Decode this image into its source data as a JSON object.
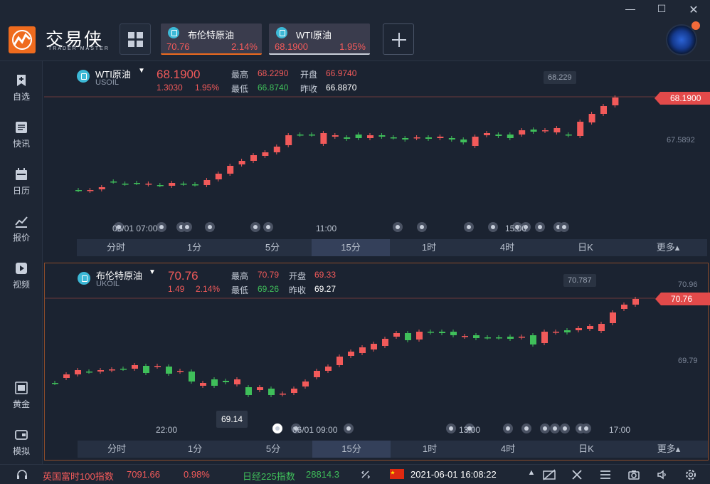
{
  "app": {
    "logo_text": "交易侠",
    "logo_sub": "TRADER MASTER"
  },
  "colors": {
    "up": "#f25a5a",
    "down": "#3fbf5a",
    "accent": "#ef6b1e"
  },
  "tabs": [
    {
      "name": "布伦特原油",
      "price": "70.76",
      "pct": "2.14%"
    },
    {
      "name": "WTI原油",
      "price": "68.1900",
      "pct": "1.95%"
    }
  ],
  "sidebar": {
    "items": [
      {
        "label": "自选",
        "icon": "star-add-icon"
      },
      {
        "label": "快讯",
        "icon": "news-icon"
      },
      {
        "label": "日历",
        "icon": "calendar-icon"
      },
      {
        "label": "报价",
        "icon": "quote-chart-icon"
      },
      {
        "label": "视频",
        "icon": "video-icon"
      },
      {
        "label": "黄金",
        "icon": "gold-icon"
      },
      {
        "label": "模拟",
        "icon": "simulate-icon"
      }
    ]
  },
  "panels": [
    {
      "name": "WTI原油",
      "code": "USOIL",
      "price": "68.1900",
      "change": "1.3030",
      "pct": "1.95%",
      "high_label": "最高",
      "high": "68.2290",
      "open_label": "开盘",
      "open": "66.9740",
      "low_label": "最低",
      "low": "66.8740",
      "prev_label": "昨收",
      "prev": "66.8870",
      "price_tag": "68.1900",
      "hi_tag": "68.229",
      "axis": [
        "67.5892"
      ],
      "times": [
        "06/01 07:00",
        "11:00",
        "15:00"
      ],
      "periods": [
        "分时",
        "1分",
        "5分",
        "15分",
        "1时",
        "4时",
        "日K",
        "更多▴"
      ],
      "active_period": 3
    },
    {
      "name": "布伦特原油",
      "code": "UKOIL",
      "price": "70.76",
      "change": "1.49",
      "pct": "2.14%",
      "high_label": "最高",
      "high": "70.79",
      "open_label": "开盘",
      "open": "69.33",
      "low_label": "最低",
      "low": "69.26",
      "prev_label": "昨收",
      "prev": "69.27",
      "price_tag": "70.76",
      "hi_tag": "70.787",
      "lo_tag": "69.14",
      "axis": [
        "70.96",
        "69.79"
      ],
      "times": [
        "22:00",
        "06/01 09:00",
        "13:00",
        "17:00"
      ],
      "periods": [
        "分时",
        "1分",
        "5分",
        "15分",
        "1时",
        "4时",
        "日K",
        "更多▴"
      ],
      "active_period": 3
    }
  ],
  "status": {
    "item1_name": "英国富时100指数",
    "item1_value": "7091.66",
    "item1_pct": "0.98%",
    "item2_name": "日经225指数",
    "item2_value": "28814.3",
    "datetime": "2021-06-01 16:08:22"
  }
}
